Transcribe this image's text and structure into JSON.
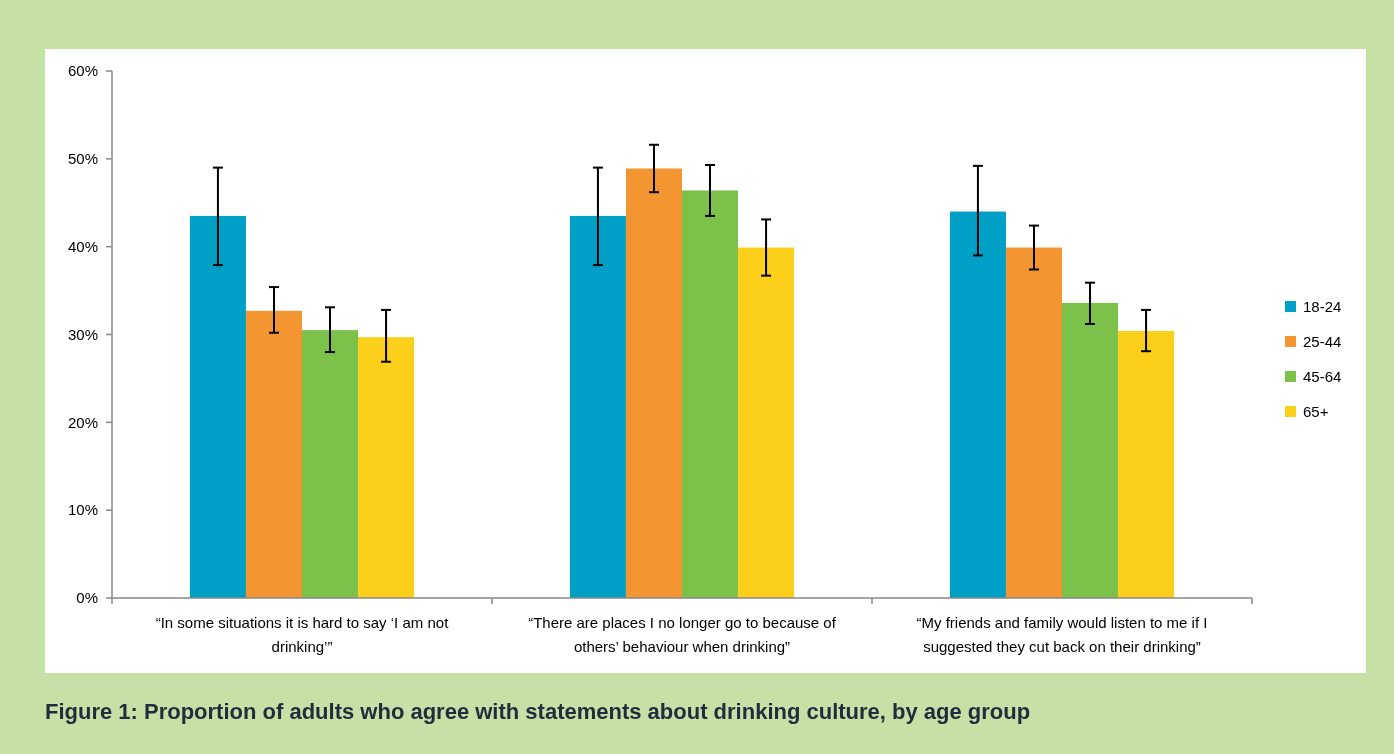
{
  "chart_data": {
    "type": "bar",
    "title": "Figure 1: Proportion of adults who agree with statements about drinking culture, by age group",
    "categories": [
      "“In some situations it is hard to say ‘I am not drinking’”",
      "“There are places I no longer go to because of others’ behaviour when drinking”",
      "“My friends and family would listen to me if I suggested they cut back on their drinking”"
    ],
    "series": [
      {
        "name": "18-24",
        "color": "#00a0c6",
        "values": [
          43.5,
          43.5,
          44.0
        ],
        "errors": [
          [
            37.9,
            49.0
          ],
          [
            37.9,
            49.0
          ],
          [
            39.0,
            49.2
          ]
        ]
      },
      {
        "name": "25-44",
        "color": "#f39530",
        "values": [
          32.7,
          48.9,
          39.9
        ],
        "errors": [
          [
            30.2,
            35.4
          ],
          [
            46.2,
            51.6
          ],
          [
            37.4,
            42.4
          ]
        ]
      },
      {
        "name": "45-64",
        "color": "#7cc24a",
        "values": [
          30.5,
          46.4,
          33.6
        ],
        "errors": [
          [
            28.0,
            33.1
          ],
          [
            43.5,
            49.3
          ],
          [
            31.2,
            35.9
          ]
        ]
      },
      {
        "name": "65+",
        "color": "#fccf1a",
        "values": [
          29.7,
          39.9,
          30.4
        ],
        "errors": [
          [
            26.9,
            32.8
          ],
          [
            36.7,
            43.1
          ],
          [
            28.1,
            32.8
          ]
        ]
      }
    ],
    "ylim": [
      0,
      60
    ],
    "yticks": [
      {
        "value": 0,
        "label": "0%"
      },
      {
        "value": 10,
        "label": "10%"
      },
      {
        "value": 20,
        "label": "20%"
      },
      {
        "value": 30,
        "label": "30%"
      },
      {
        "value": 40,
        "label": "40%"
      },
      {
        "value": 50,
        "label": "50%"
      },
      {
        "value": 60,
        "label": "60%"
      }
    ],
    "grid": false,
    "legend": "right"
  }
}
